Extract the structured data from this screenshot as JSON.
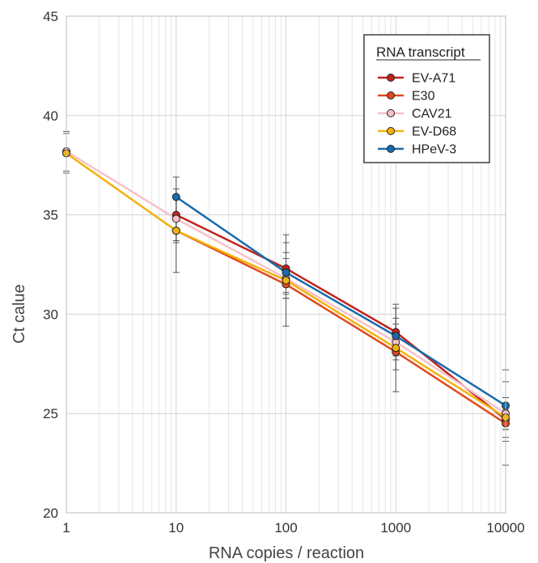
{
  "chart_data": {
    "type": "line",
    "xlabel": "RNA copies / reaction",
    "ylabel": "Ct calue",
    "x_scale": "log10",
    "xlim": [
      1,
      10000
    ],
    "ylim": [
      20,
      45
    ],
    "x_ticks": [
      1,
      10,
      100,
      1000,
      10000
    ],
    "x_tick_labels": [
      "1",
      "10",
      "100",
      "1000",
      "10000"
    ],
    "y_ticks": [
      20,
      25,
      30,
      35,
      40,
      45
    ],
    "y_tick_labels": [
      "20",
      "25",
      "30",
      "35",
      "40",
      "45"
    ],
    "grid": true,
    "legend": {
      "title": "RNA transcript",
      "placement": "top-right"
    },
    "series": [
      {
        "name": "EV-A71",
        "color": "#c0231c",
        "x": [
          10,
          100,
          1000,
          10000
        ],
        "y": [
          35.0,
          32.3,
          29.1,
          24.7
        ],
        "err": [
          0.9,
          1.3,
          1.2,
          1.1
        ]
      },
      {
        "name": "E30",
        "color": "#e04a1c",
        "x": [
          10,
          100,
          1000,
          10000
        ],
        "y": [
          34.2,
          31.5,
          28.1,
          24.5
        ],
        "err": [
          0.6,
          0.7,
          0.9,
          0.7
        ]
      },
      {
        "name": "CAV21",
        "color": "#f5c2c8",
        "x": [
          1,
          10,
          100,
          1000,
          10000
        ],
        "y": [
          38.2,
          34.8,
          31.8,
          28.6,
          25.0
        ],
        "err": [
          1.0,
          1.1,
          1.0,
          0.9,
          0.8
        ]
      },
      {
        "name": "EV-D68",
        "color": "#f2b20e",
        "x": [
          1,
          10,
          100,
          1000,
          10000
        ],
        "y": [
          38.1,
          34.2,
          31.7,
          28.3,
          24.8
        ],
        "err": [
          1.0,
          2.1,
          2.3,
          2.2,
          2.4
        ]
      },
      {
        "name": "HPeV-3",
        "color": "#1a6aaa",
        "x": [
          10,
          100,
          1000,
          10000
        ],
        "y": [
          35.9,
          32.1,
          28.9,
          25.4
        ],
        "err": [
          1.0,
          1.0,
          0.9,
          1.2
        ]
      }
    ]
  }
}
